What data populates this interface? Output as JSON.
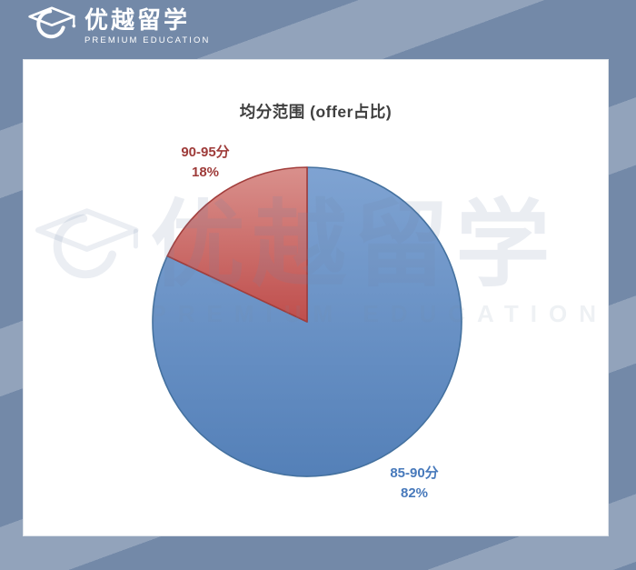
{
  "header": {
    "brand_cn": "优越留学",
    "brand_en": "PREMIUM EDUCATION"
  },
  "chart_data": {
    "type": "pie",
    "title": "均分范围 (offer占比)",
    "slices": [
      {
        "label": "90-95分",
        "value": 18,
        "display": "18%",
        "fill_top": "#D9908C",
        "fill_bottom": "#BF4E4C",
        "stroke": "#A23E3C",
        "label_color": "#9E3B39"
      },
      {
        "label": "85-90分",
        "value": 82,
        "display": "82%",
        "fill_top": "#7FA3D2",
        "fill_bottom": "#5480B8",
        "stroke": "#44719F",
        "label_color": "#4779BB"
      }
    ],
    "start_angle_deg": -90,
    "direction": "counterclockwise",
    "legend_position": "none",
    "data_labels": "outside-end"
  },
  "watermark": {
    "text_cn": "优越留学",
    "text_en": "PREMIUM EDUCATION"
  },
  "colors": {
    "page_bg": "#7389A8",
    "stripe": "#92A3BB",
    "card_bg": "#FFFFFF",
    "title_color": "#3F3F3F"
  }
}
